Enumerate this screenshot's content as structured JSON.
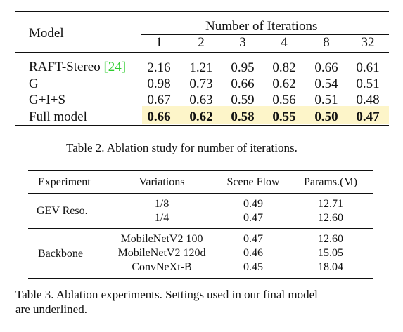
{
  "table2": {
    "model_header": "Model",
    "iterations_header": "Number of Iterations",
    "iterations": [
      "1",
      "2",
      "3",
      "4",
      "8",
      "32"
    ],
    "rows": [
      {
        "name": "RAFT-Stereo",
        "cite": "[24]",
        "values": [
          "2.16",
          "1.21",
          "0.95",
          "0.82",
          "0.66",
          "0.61"
        ]
      },
      {
        "name": "G",
        "cite": "",
        "values": [
          "0.98",
          "0.73",
          "0.66",
          "0.62",
          "0.54",
          "0.51"
        ]
      },
      {
        "name": "G+I+S",
        "cite": "",
        "values": [
          "0.67",
          "0.63",
          "0.59",
          "0.56",
          "0.51",
          "0.48"
        ]
      },
      {
        "name": "Full model",
        "cite": "",
        "values": [
          "0.66",
          "0.62",
          "0.58",
          "0.55",
          "0.50",
          "0.47"
        ]
      }
    ],
    "caption": "Table 2. Ablation study for number of iterations."
  },
  "table3": {
    "headers": [
      "Experiment",
      "Variations",
      "Scene Flow",
      "Params.(M)"
    ],
    "groups": [
      {
        "experiment": "GEV Reso.",
        "rows": [
          {
            "variation": "1/8",
            "scene_flow": "0.49",
            "params": "12.71",
            "underlined": false
          },
          {
            "variation": "1/4",
            "scene_flow": "0.47",
            "params": "12.60",
            "underlined": true
          }
        ]
      },
      {
        "experiment": "Backbone",
        "rows": [
          {
            "variation": "MobileNetV2 100",
            "scene_flow": "0.47",
            "params": "12.60",
            "underlined": true
          },
          {
            "variation": "MobileNetV2 120d",
            "scene_flow": "0.46",
            "params": "15.05",
            "underlined": false
          },
          {
            "variation": "ConvNeXt-B",
            "scene_flow": "0.45",
            "params": "18.04",
            "underlined": false
          }
        ]
      }
    ],
    "caption_line1": "Table 3.  Ablation experiments.  Settings used in our final model",
    "caption_line2": "are underlined."
  }
}
